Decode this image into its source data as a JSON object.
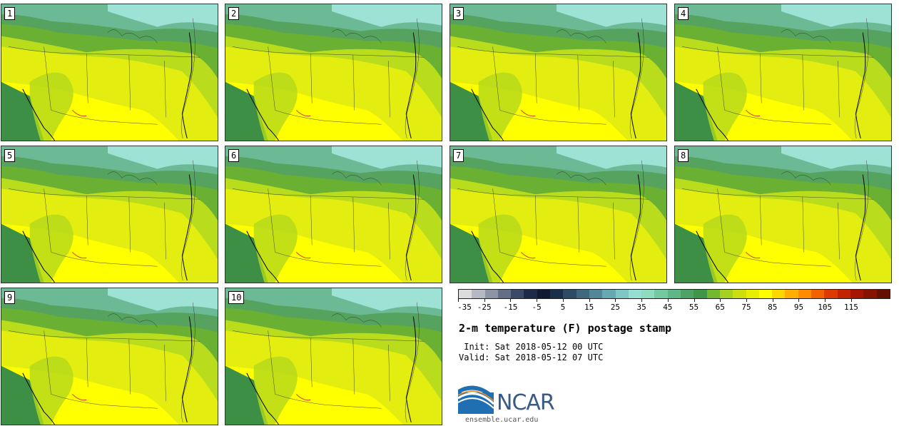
{
  "panels": [
    {
      "label": "1"
    },
    {
      "label": "2"
    },
    {
      "label": "3"
    },
    {
      "label": "4"
    },
    {
      "label": "5"
    },
    {
      "label": "6"
    },
    {
      "label": "7"
    },
    {
      "label": "8"
    },
    {
      "label": "9"
    },
    {
      "label": "10"
    }
  ],
  "colorbar": {
    "colors": [
      "#dcdcdc",
      "#b4b9c3",
      "#8c94a5",
      "#646e87",
      "#3c4a69",
      "#1e2a4a",
      "#101a33",
      "#1a2d4a",
      "#2d4a66",
      "#3f6780",
      "#528699",
      "#67a8b3",
      "#7fc6c6",
      "#93dfd4",
      "#8edcc0",
      "#74c9a0",
      "#5eb785",
      "#4ca365",
      "#3f9548",
      "#74b82e",
      "#a5d21e",
      "#ccdf0c",
      "#e9ee00",
      "#ffff00",
      "#ffd700",
      "#ffae00",
      "#ff8c00",
      "#f26300",
      "#dc3a00",
      "#c22300",
      "#a51500",
      "#861300",
      "#641000"
    ],
    "tick_values": [
      "-35",
      "-25",
      "-15",
      "-5",
      "5",
      "15",
      "25",
      "35",
      "45",
      "55",
      "65",
      "75",
      "85",
      "95",
      "105",
      "115"
    ]
  },
  "title": "2-m temperature (F) postage stamp",
  "init_text": " Init: Sat 2018-05-12 00 UTC",
  "valid_text": "Valid: Sat 2018-05-12 07 UTC",
  "logo_text": "NCAR",
  "url_text": "ensemble.ucar.edu"
}
